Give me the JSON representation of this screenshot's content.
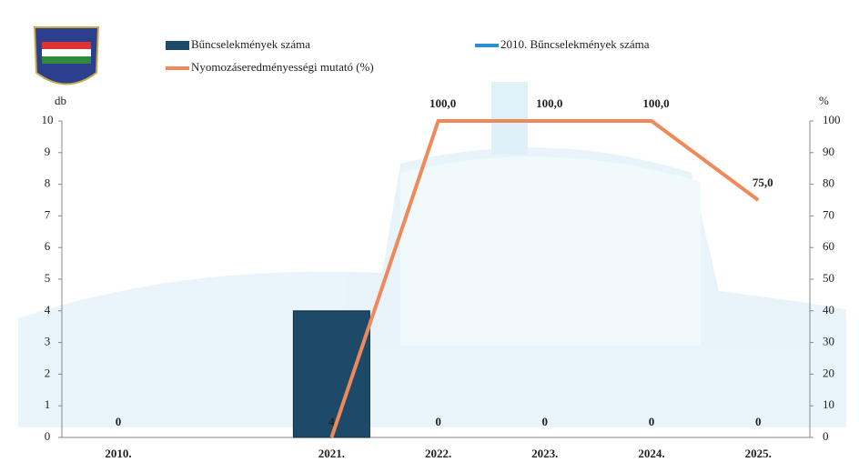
{
  "chart_data": {
    "type": "bar",
    "ylabel": "db",
    "y2label": "%",
    "categories": [
      "2010.",
      null,
      "2021.",
      "2022.",
      "2023.",
      "2024.",
      "2025."
    ],
    "series": [
      {
        "name": "Bűncselekmények száma",
        "type": "bar",
        "color": "#1d4a68",
        "values": [
          0,
          null,
          4,
          0,
          0,
          0,
          0
        ]
      },
      {
        "name": "2010. Bűncselekmények száma",
        "type": "line",
        "color": "#2b8fd6",
        "values": [
          null,
          null,
          null,
          null,
          null,
          null,
          null
        ]
      },
      {
        "name": "Nyomozáseredményességi mutató (%)",
        "type": "line",
        "axis": "y2",
        "color": "#f0895a",
        "values": [
          null,
          null,
          0,
          100,
          100,
          100,
          75
        ],
        "value_labels": [
          null,
          null,
          null,
          "100,0",
          "100,0",
          "100,0",
          "75,0"
        ]
      }
    ],
    "ylim": [
      0,
      10
    ],
    "yticks": [
      0,
      1,
      2,
      3,
      4,
      5,
      6,
      7,
      8,
      9,
      10
    ],
    "y2lim": [
      0,
      100
    ],
    "y2ticks": [
      0,
      10,
      20,
      30,
      40,
      50,
      60,
      70,
      80,
      90,
      100
    ]
  }
}
